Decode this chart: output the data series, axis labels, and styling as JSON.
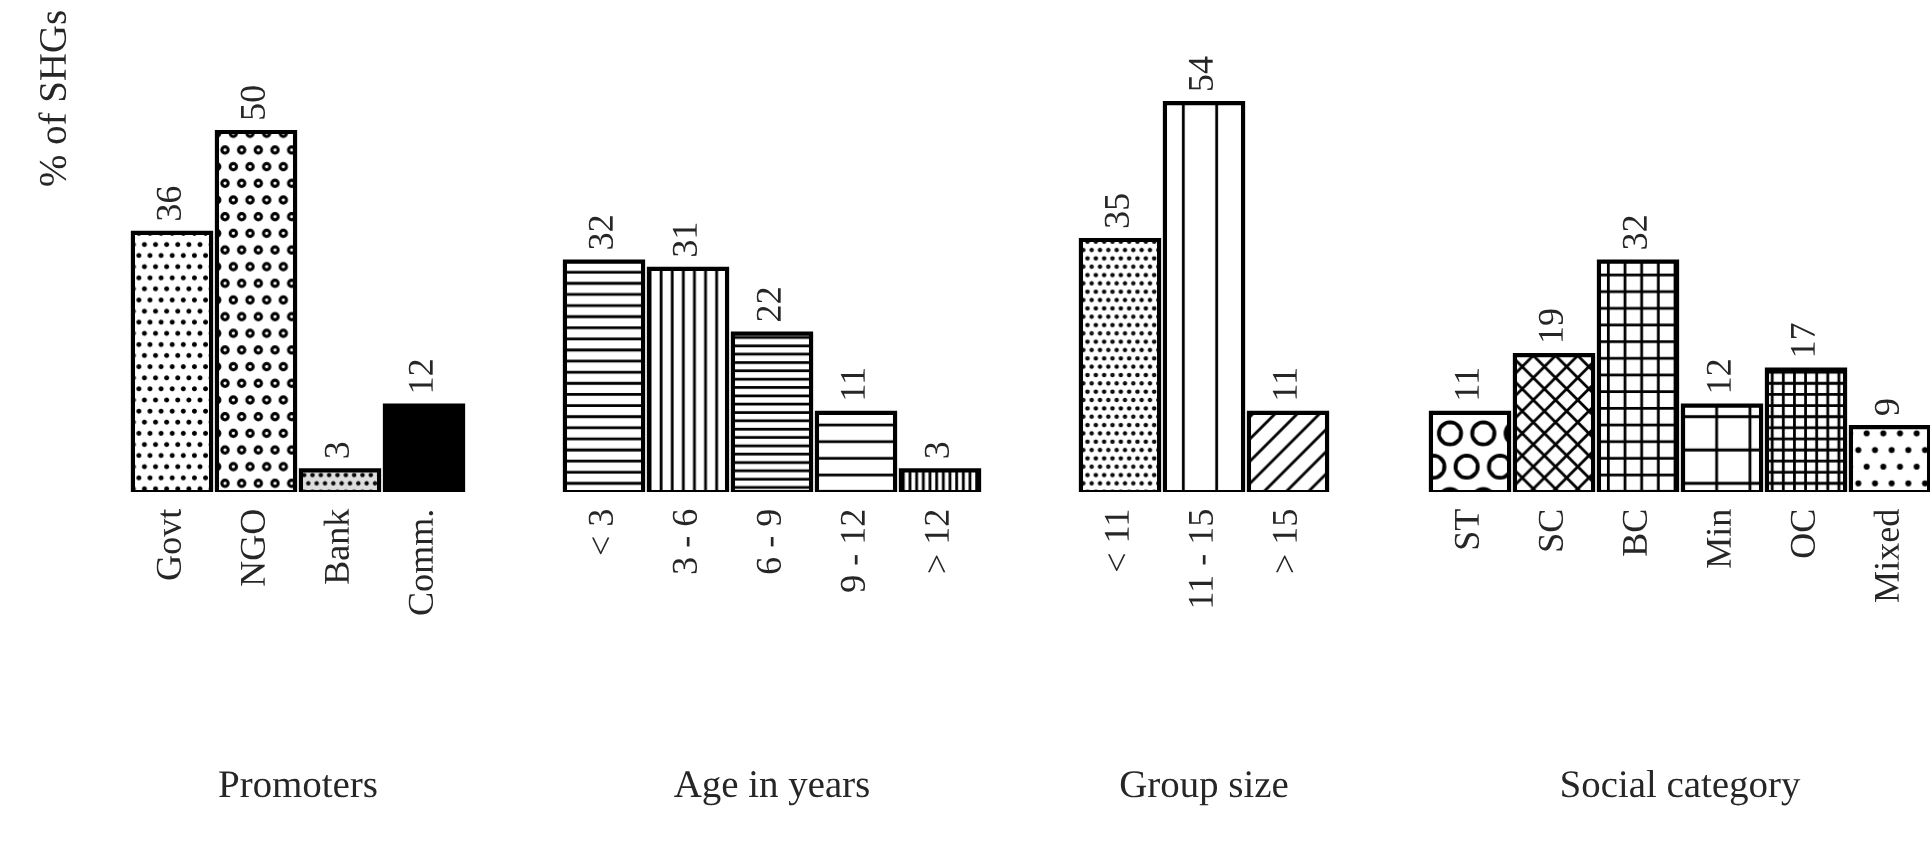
{
  "chart_data": [
    {
      "type": "bar",
      "xlabel": "Promoters",
      "ylabel": "% of SHGs",
      "categories": [
        "Govt",
        "NGO",
        "Bank",
        "Comm."
      ],
      "values": [
        36,
        50,
        3,
        12
      ],
      "color": "#000000",
      "data_labels": true,
      "tick_labels": "x"
    },
    {
      "type": "bar",
      "xlabel": "Age in years",
      "categories": [
        "< 3",
        "3 - 6",
        "6 - 9",
        "9 - 12",
        "> 12"
      ],
      "values": [
        32,
        31,
        22,
        11,
        3
      ],
      "color": "#000000",
      "data_labels": true,
      "tick_labels": "x"
    },
    {
      "type": "bar",
      "xlabel": "Group size",
      "categories": [
        "< 11",
        "11 - 15",
        "> 15"
      ],
      "values": [
        35,
        54,
        11
      ],
      "color": "#000000",
      "data_labels": true,
      "tick_labels": "x"
    },
    {
      "type": "bar",
      "xlabel": "Social category",
      "categories": [
        "ST",
        "SC",
        "BC",
        "Min",
        "OC",
        "Mixed"
      ],
      "values": [
        11,
        19,
        32,
        12,
        17,
        9
      ],
      "color": "#000000",
      "data_labels": true,
      "tick_labels": "x"
    }
  ]
}
